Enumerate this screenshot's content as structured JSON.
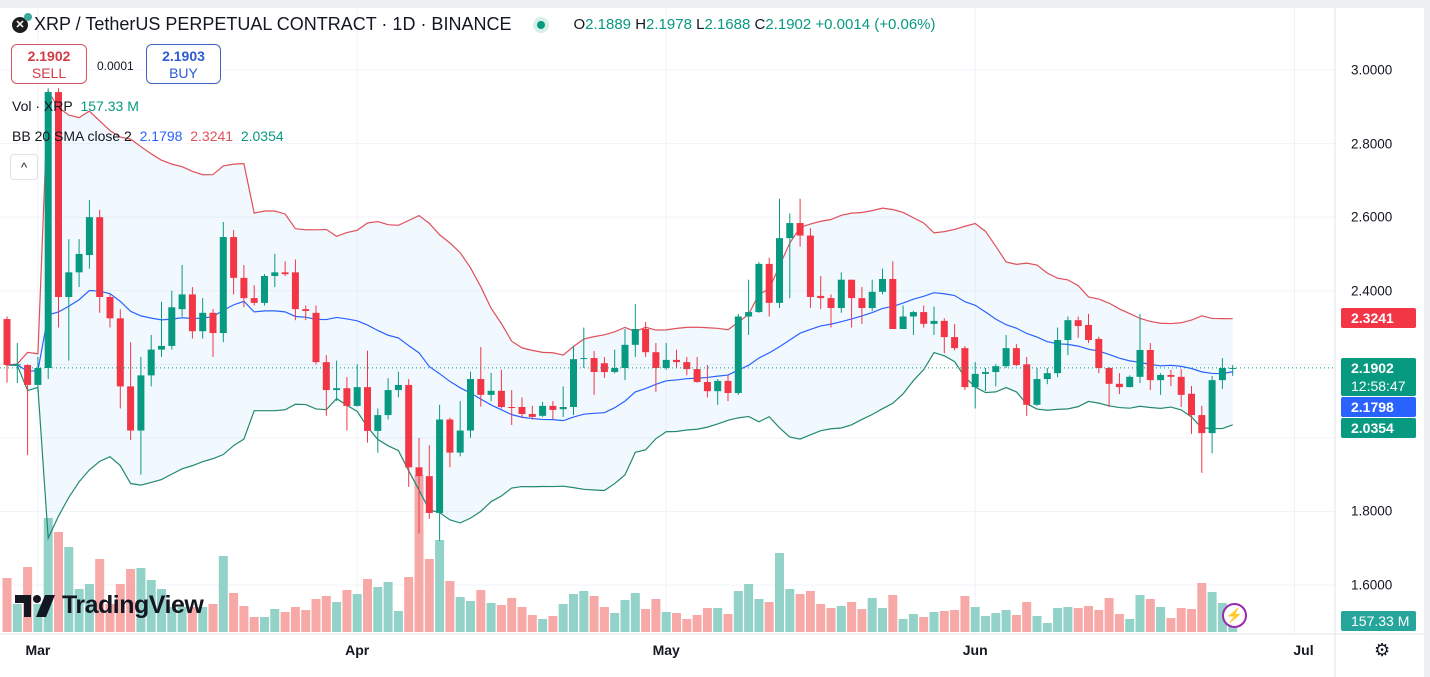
{
  "header": {
    "title": "XRP / TetherUS PERPETUAL CONTRACT · 1D · BINANCE",
    "logo_icon": "xrp-icon",
    "ohlc": {
      "o_label": "O",
      "o": "2.1889",
      "h_label": "H",
      "h": "2.1978",
      "l_label": "L",
      "l": "2.1688",
      "c_label": "C",
      "c": "2.1902",
      "change": "+0.0014 (+0.06%)"
    }
  },
  "trade": {
    "sell_price": "2.1902",
    "sell_label": "SELL",
    "spread": "0.0001",
    "buy_price": "2.1903",
    "buy_label": "BUY"
  },
  "legend": {
    "vol_label": "Vol · XRP",
    "vol_value": "157.33 M",
    "bb_label": "BB 20 SMA close 2",
    "bb_basis": "2.1798",
    "bb_upper": "2.3241",
    "bb_lower": "2.0354"
  },
  "price_axis": {
    "labels": [
      "3.0000",
      "2.8000",
      "2.6000",
      "2.4000",
      "1.8000",
      "1.6000"
    ]
  },
  "badges": {
    "upper": "2.3241",
    "last": "2.1902",
    "countdown": "12:58:47",
    "basis": "2.1798",
    "lower": "2.0354",
    "volume": "157.33 M"
  },
  "brand": "TradingView",
  "colors": {
    "up": "#089981",
    "down": "#f23645",
    "vol_up": "#92d2c8",
    "vol_down": "#f7a9a8",
    "bb_upper": "#e0505b",
    "bb_basis": "#2962ff",
    "bb_lower": "#22896f",
    "bb_fill": "#2196f3"
  },
  "chart_data": {
    "type": "candlestick",
    "title": "XRP / TetherUS PERPETUAL CONTRACT · 1D · BINANCE",
    "ylim": [
      1.52,
      3.08
    ],
    "yticks": [
      3.0,
      2.8,
      2.6,
      2.4,
      2.2,
      2.0,
      1.8,
      1.6
    ],
    "x_ticks": [
      {
        "label": "Mar",
        "index": 3
      },
      {
        "label": "Apr",
        "index": 34
      },
      {
        "label": "May",
        "index": 64
      },
      {
        "label": "Jun",
        "index": 94
      },
      {
        "label": "Jul",
        "index": 125
      }
    ],
    "last_price": 2.1902,
    "indicator": {
      "name": "BB",
      "length": 20,
      "source": "close",
      "mult": 2
    },
    "ohlc": [
      [
        2.323,
        2.33,
        2.15,
        2.198
      ],
      [
        2.198,
        2.258,
        2.149,
        2.2
      ],
      [
        2.198,
        2.2,
        1.953,
        2.144
      ],
      [
        2.144,
        2.22,
        2.125,
        2.19
      ],
      [
        2.19,
        2.95,
        2.16,
        2.94
      ],
      [
        2.94,
        2.95,
        2.3,
        2.383
      ],
      [
        2.383,
        2.54,
        2.21,
        2.45
      ],
      [
        2.45,
        2.54,
        2.41,
        2.5
      ],
      [
        2.497,
        2.647,
        2.46,
        2.6
      ],
      [
        2.6,
        2.62,
        2.34,
        2.383
      ],
      [
        2.383,
        2.39,
        2.3,
        2.325
      ],
      [
        2.325,
        2.35,
        2.08,
        2.14
      ],
      [
        2.14,
        2.26,
        1.994,
        2.02
      ],
      [
        2.02,
        2.22,
        1.9,
        2.17
      ],
      [
        2.17,
        2.28,
        2.14,
        2.24
      ],
      [
        2.24,
        2.37,
        2.22,
        2.25
      ],
      [
        2.25,
        2.4,
        2.24,
        2.355
      ],
      [
        2.35,
        2.47,
        2.33,
        2.39
      ],
      [
        2.39,
        2.41,
        2.27,
        2.29
      ],
      [
        2.29,
        2.38,
        2.27,
        2.34
      ],
      [
        2.34,
        2.35,
        2.22,
        2.285
      ],
      [
        2.285,
        2.587,
        2.26,
        2.546
      ],
      [
        2.546,
        2.565,
        2.39,
        2.435
      ],
      [
        2.435,
        2.47,
        2.355,
        2.38
      ],
      [
        2.38,
        2.415,
        2.36,
        2.367
      ],
      [
        2.367,
        2.445,
        2.36,
        2.44
      ],
      [
        2.44,
        2.5,
        2.41,
        2.45
      ],
      [
        2.45,
        2.48,
        2.44,
        2.445
      ],
      [
        2.45,
        2.485,
        2.32,
        2.35
      ],
      [
        2.35,
        2.36,
        2.32,
        2.345
      ],
      [
        2.34,
        2.36,
        2.2,
        2.206
      ],
      [
        2.206,
        2.225,
        2.06,
        2.13
      ],
      [
        2.13,
        2.21,
        2.1,
        2.135
      ],
      [
        2.135,
        2.165,
        2.02,
        2.087
      ],
      [
        2.087,
        2.2,
        2.085,
        2.138
      ],
      [
        2.138,
        2.237,
        1.987,
        2.019
      ],
      [
        2.019,
        2.08,
        1.96,
        2.062
      ],
      [
        2.062,
        2.162,
        2.05,
        2.13
      ],
      [
        2.13,
        2.18,
        2.11,
        2.144
      ],
      [
        2.144,
        2.16,
        1.867,
        1.92
      ],
      [
        1.92,
        2.0,
        1.74,
        1.896
      ],
      [
        1.896,
        1.98,
        1.78,
        1.796
      ],
      [
        1.796,
        2.09,
        1.72,
        2.05
      ],
      [
        2.05,
        2.055,
        1.92,
        1.96
      ],
      [
        1.96,
        2.1,
        1.95,
        2.02
      ],
      [
        2.02,
        2.18,
        2.0,
        2.16
      ],
      [
        2.16,
        2.247,
        2.085,
        2.117
      ],
      [
        2.117,
        2.177,
        2.1,
        2.128
      ],
      [
        2.128,
        2.185,
        2.08,
        2.084
      ],
      [
        2.084,
        2.13,
        2.035,
        2.083
      ],
      [
        2.084,
        2.11,
        2.054,
        2.065
      ],
      [
        2.065,
        2.087,
        2.05,
        2.057
      ],
      [
        2.06,
        2.098,
        2.057,
        2.087
      ],
      [
        2.087,
        2.1,
        2.05,
        2.076
      ],
      [
        2.078,
        2.14,
        2.057,
        2.084
      ],
      [
        2.084,
        2.25,
        2.062,
        2.214
      ],
      [
        2.215,
        2.3,
        2.19,
        2.217
      ],
      [
        2.217,
        2.236,
        2.117,
        2.179
      ],
      [
        2.203,
        2.22,
        2.163,
        2.179
      ],
      [
        2.179,
        2.24,
        2.175,
        2.19
      ],
      [
        2.19,
        2.296,
        2.157,
        2.253
      ],
      [
        2.253,
        2.364,
        2.22,
        2.296
      ],
      [
        2.296,
        2.315,
        2.22,
        2.233
      ],
      [
        2.233,
        2.258,
        2.125,
        2.19
      ],
      [
        2.19,
        2.258,
        2.185,
        2.212
      ],
      [
        2.212,
        2.24,
        2.19,
        2.206
      ],
      [
        2.206,
        2.22,
        2.17,
        2.187
      ],
      [
        2.187,
        2.22,
        2.15,
        2.152
      ],
      [
        2.152,
        2.198,
        2.11,
        2.127
      ],
      [
        2.127,
        2.16,
        2.09,
        2.155
      ],
      [
        2.155,
        2.17,
        2.1,
        2.122
      ],
      [
        2.122,
        2.337,
        2.117,
        2.33
      ],
      [
        2.33,
        2.43,
        2.28,
        2.342
      ],
      [
        2.342,
        2.478,
        2.34,
        2.473
      ],
      [
        2.473,
        2.49,
        2.33,
        2.367
      ],
      [
        2.367,
        2.65,
        2.353,
        2.543
      ],
      [
        2.543,
        2.61,
        2.38,
        2.584
      ],
      [
        2.584,
        2.65,
        2.52,
        2.55
      ],
      [
        2.55,
        2.57,
        2.353,
        2.383
      ],
      [
        2.386,
        2.44,
        2.35,
        2.38
      ],
      [
        2.38,
        2.39,
        2.3,
        2.353
      ],
      [
        2.353,
        2.45,
        2.34,
        2.43
      ],
      [
        2.43,
        2.43,
        2.3,
        2.38
      ],
      [
        2.38,
        2.41,
        2.31,
        2.353
      ],
      [
        2.353,
        2.43,
        2.345,
        2.397
      ],
      [
        2.397,
        2.46,
        2.39,
        2.432
      ],
      [
        2.432,
        2.48,
        2.3,
        2.296
      ],
      [
        2.296,
        2.36,
        2.296,
        2.33
      ],
      [
        2.33,
        2.345,
        2.28,
        2.342
      ],
      [
        2.342,
        2.36,
        2.3,
        2.31
      ],
      [
        2.31,
        2.357,
        2.28,
        2.318
      ],
      [
        2.318,
        2.325,
        2.23,
        2.274
      ],
      [
        2.274,
        2.31,
        2.238,
        2.244
      ],
      [
        2.244,
        2.25,
        2.13,
        2.138
      ],
      [
        2.138,
        2.206,
        2.08,
        2.174
      ],
      [
        2.174,
        2.19,
        2.127,
        2.179
      ],
      [
        2.179,
        2.2,
        2.14,
        2.195
      ],
      [
        2.195,
        2.28,
        2.19,
        2.244
      ],
      [
        2.244,
        2.255,
        2.195,
        2.198
      ],
      [
        2.2,
        2.22,
        2.06,
        2.09
      ],
      [
        2.09,
        2.19,
        2.087,
        2.16
      ],
      [
        2.16,
        2.19,
        2.146,
        2.176
      ],
      [
        2.176,
        2.3,
        2.165,
        2.266
      ],
      [
        2.266,
        2.33,
        2.225,
        2.32
      ],
      [
        2.32,
        2.33,
        2.272,
        2.304
      ],
      [
        2.307,
        2.337,
        2.258,
        2.266
      ],
      [
        2.269,
        2.275,
        2.176,
        2.19
      ],
      [
        2.19,
        2.193,
        2.084,
        2.147
      ],
      [
        2.147,
        2.176,
        2.119,
        2.138
      ],
      [
        2.138,
        2.17,
        2.138,
        2.166
      ],
      [
        2.166,
        2.337,
        2.149,
        2.239
      ],
      [
        2.239,
        2.258,
        2.13,
        2.157
      ],
      [
        2.157,
        2.176,
        2.117,
        2.171
      ],
      [
        2.171,
        2.185,
        2.141,
        2.166
      ],
      [
        2.166,
        2.187,
        2.084,
        2.117
      ],
      [
        2.12,
        2.141,
        2.011,
        2.062
      ],
      [
        2.062,
        2.087,
        1.905,
        2.013
      ],
      [
        2.013,
        2.168,
        1.958,
        2.157
      ],
      [
        2.157,
        2.217,
        2.133,
        2.19
      ],
      [
        2.1889,
        2.1978,
        2.1688,
        2.1902
      ]
    ],
    "volume_m": [
      1620,
      840,
      1950,
      840,
      3420,
      3000,
      2550,
      1290,
      1440,
      2190,
      840,
      1440,
      1890,
      1920,
      1560,
      1290,
      750,
      750,
      750,
      750,
      840,
      2280,
      1170,
      780,
      450,
      450,
      690,
      600,
      750,
      660,
      990,
      1080,
      900,
      1260,
      1140,
      1590,
      1350,
      1500,
      630,
      1650,
      4710,
      2190,
      2760,
      1530,
      1050,
      930,
      1260,
      870,
      810,
      1020,
      750,
      510,
      390,
      480,
      840,
      1140,
      1230,
      1080,
      750,
      570,
      960,
      1170,
      690,
      990,
      600,
      570,
      390,
      510,
      720,
      720,
      540,
      1230,
      1440,
      990,
      900,
      2370,
      1290,
      1140,
      1230,
      840,
      720,
      780,
      900,
      690,
      1020,
      720,
      1110,
      390,
      540,
      450,
      600,
      630,
      660,
      1080,
      750,
      480,
      570,
      660,
      510,
      900,
      480,
      270,
      720,
      750,
      720,
      780,
      660,
      1020,
      540,
      390,
      1110,
      990,
      750,
      420,
      720,
      690,
      1470,
      1200,
      870,
      157.33
    ]
  }
}
